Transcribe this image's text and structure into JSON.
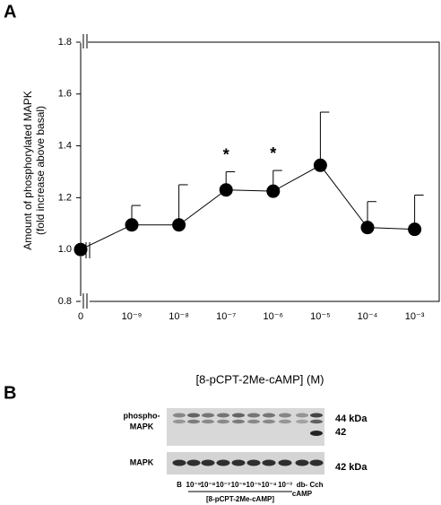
{
  "chart_data": {
    "type": "line",
    "panel_label": "A",
    "ylabel": [
      "Amount of phosphorylated MAPK",
      "(fold increase above basal)"
    ],
    "xlabel": "[8-pCPT-2Me-cAMP] (M)",
    "categories": [
      "0",
      "10⁻⁹",
      "10⁻⁸",
      "10⁻⁷",
      "10⁻⁶",
      "10⁻⁵",
      "10⁻⁴",
      "10⁻³"
    ],
    "values": [
      1.0,
      1.095,
      1.095,
      1.23,
      1.225,
      1.325,
      1.085,
      1.078
    ],
    "errors": [
      null,
      0.075,
      0.155,
      0.07,
      0.08,
      0.205,
      0.1,
      0.132
    ],
    "significance_labels": [
      null,
      null,
      null,
      "*",
      "*",
      null,
      null,
      null
    ],
    "color": "#000000",
    "ylim": [
      0.8,
      1.8
    ],
    "yticks": [
      {
        "value": 0.8,
        "label": "0.8"
      },
      {
        "value": 1.0,
        "label": "1.0"
      },
      {
        "value": 1.2,
        "label": "1.2"
      },
      {
        "value": 1.4,
        "label": "1.4"
      },
      {
        "value": 1.6,
        "label": "1.6"
      },
      {
        "value": 1.8,
        "label": "1.8"
      }
    ],
    "grid": false
  },
  "blot": {
    "panel_label": "B",
    "row_labels": [
      [
        "phospho-",
        "MAPK"
      ],
      [
        "MAPK"
      ]
    ],
    "size_labels": [
      "44 kDa",
      "42",
      "42 kDa"
    ],
    "lanes": [
      "B",
      "10⁻⁹",
      "10⁻⁸",
      "10⁻⁷",
      "10⁻⁶",
      "10⁻⁵",
      "10⁻⁴",
      "10⁻³",
      [
        "db-",
        "cAMP"
      ],
      "Cch"
    ],
    "bracket_label": "[8-pCPT-2Me-cAMP]"
  }
}
